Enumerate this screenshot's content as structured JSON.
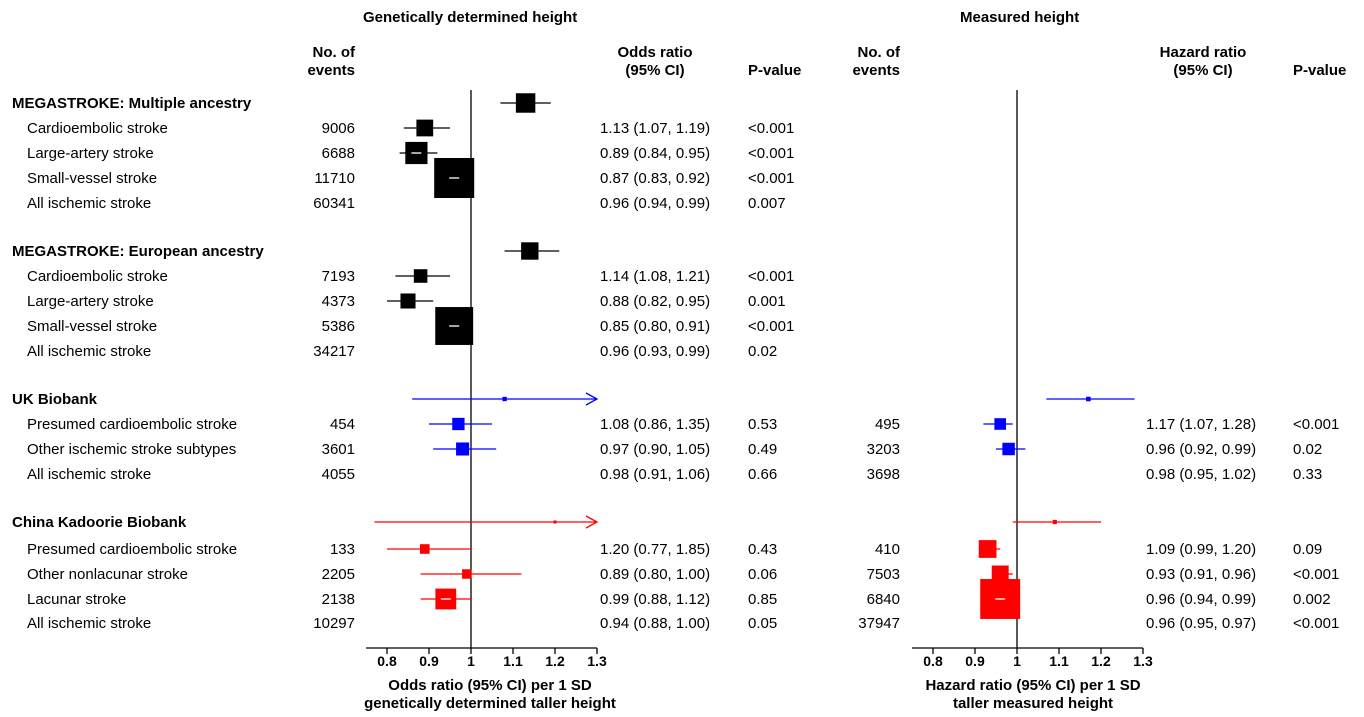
{
  "colors": {
    "black": "#000000",
    "blue": "#0000ff",
    "red": "#ff0000"
  },
  "chart_data": [
    {
      "type": "forest",
      "title": "Genetically determined height",
      "col_events": "No. of\nevents",
      "col_estimate": "Odds ratio\n(95% CI)",
      "col_p": "P-value",
      "xlabel": "Odds ratio (95% CI) per 1 SD\ngenetically determined taller height",
      "xlim": [
        0.75,
        1.3
      ],
      "ticks": [
        0.8,
        0.9,
        1,
        1.1,
        1.2,
        1.3
      ],
      "tick_labels": [
        "0.8",
        "0.9",
        "1",
        "1.1",
        "1.2",
        "1.3"
      ],
      "reference": 1,
      "rows": [
        {
          "est": 1.13,
          "lo": 1.07,
          "hi": 1.19,
          "color": "black",
          "w": 9006
        },
        {
          "est": 0.89,
          "lo": 0.84,
          "hi": 0.95,
          "color": "black",
          "w": 6688
        },
        {
          "est": 0.87,
          "lo": 0.83,
          "hi": 0.92,
          "color": "black",
          "w": 11710
        },
        {
          "est": 0.96,
          "lo": 0.94,
          "hi": 0.99,
          "color": "black",
          "w": 60341
        },
        null,
        {
          "est": 1.14,
          "lo": 1.08,
          "hi": 1.21,
          "color": "black",
          "w": 7193
        },
        {
          "est": 0.88,
          "lo": 0.82,
          "hi": 0.95,
          "color": "black",
          "w": 4373
        },
        {
          "est": 0.85,
          "lo": 0.8,
          "hi": 0.91,
          "color": "black",
          "w": 5386
        },
        {
          "est": 0.96,
          "lo": 0.93,
          "hi": 0.99,
          "color": "black",
          "w": 34217
        },
        null,
        {
          "est": 1.08,
          "lo": 0.86,
          "hi": 1.35,
          "color": "blue",
          "w": 454,
          "arrow": true
        },
        {
          "est": 0.97,
          "lo": 0.9,
          "hi": 1.05,
          "color": "blue",
          "w": 3601
        },
        {
          "est": 0.98,
          "lo": 0.91,
          "hi": 1.06,
          "color": "blue",
          "w": 4055
        },
        null,
        {
          "est": 1.2,
          "lo": 0.77,
          "hi": 1.85,
          "color": "red",
          "w": 133,
          "arrow": true
        },
        {
          "est": 0.89,
          "lo": 0.8,
          "hi": 1.0,
          "color": "red",
          "w": 2205
        },
        {
          "est": 0.99,
          "lo": 0.88,
          "hi": 1.12,
          "color": "red",
          "w": 2138
        },
        {
          "est": 0.94,
          "lo": 0.88,
          "hi": 1.0,
          "color": "red",
          "w": 10297
        }
      ]
    },
    {
      "type": "forest",
      "title": "Measured height",
      "col_events": "No. of\nevents",
      "col_estimate": "Hazard ratio\n(95% CI)",
      "col_p": "P-value",
      "xlabel": "Hazard ratio (95% CI) per 1 SD\ntaller measured height",
      "xlim": [
        0.75,
        1.3
      ],
      "ticks": [
        0.8,
        0.9,
        1,
        1.1,
        1.2,
        1.3
      ],
      "tick_labels": [
        "0.8",
        "0.9",
        "1",
        "1.1",
        "1.2",
        "1.3"
      ],
      "reference": 1,
      "rows": [
        null,
        null,
        null,
        null,
        null,
        null,
        null,
        null,
        null,
        null,
        {
          "est": 1.17,
          "lo": 1.07,
          "hi": 1.28,
          "color": "blue",
          "w": 495
        },
        {
          "est": 0.96,
          "lo": 0.92,
          "hi": 0.99,
          "color": "blue",
          "w": 3203
        },
        {
          "est": 0.98,
          "lo": 0.95,
          "hi": 1.02,
          "color": "blue",
          "w": 3698
        },
        null,
        {
          "est": 1.09,
          "lo": 0.99,
          "hi": 1.2,
          "color": "red",
          "w": 410
        },
        {
          "est": 0.93,
          "lo": 0.91,
          "hi": 0.96,
          "color": "red",
          "w": 7503
        },
        {
          "est": 0.96,
          "lo": 0.94,
          "hi": 0.99,
          "color": "red",
          "w": 6840
        },
        {
          "est": 0.96,
          "lo": 0.95,
          "hi": 0.97,
          "color": "red",
          "w": 37947
        }
      ]
    }
  ],
  "table": {
    "rows": [
      {
        "kind": "header",
        "label": "MEGASTROKE: Multiple ancestry"
      },
      {
        "kind": "item",
        "label": "Cardioembolic stroke",
        "n1": "9006",
        "or": "1.13 (1.07, 1.19)",
        "p1": "<0.001"
      },
      {
        "kind": "item",
        "label": "Large-artery stroke",
        "n1": "6688",
        "or": "0.89 (0.84, 0.95)",
        "p1": "<0.001"
      },
      {
        "kind": "item",
        "label": "Small-vessel stroke",
        "n1": "11710",
        "or": "0.87 (0.83, 0.92)",
        "p1": "<0.001"
      },
      {
        "kind": "item",
        "label": "All ischemic stroke",
        "n1": "60341",
        "or": "0.96 (0.94, 0.99)",
        "p1": "0.007"
      },
      {
        "kind": "header",
        "label": "MEGASTROKE: European ancestry"
      },
      {
        "kind": "item",
        "label": "Cardioembolic stroke",
        "n1": "7193",
        "or": "1.14 (1.08, 1.21)",
        "p1": "<0.001"
      },
      {
        "kind": "item",
        "label": "Large-artery stroke",
        "n1": "4373",
        "or": "0.88 (0.82, 0.95)",
        "p1": "0.001"
      },
      {
        "kind": "item",
        "label": "Small-vessel stroke",
        "n1": "5386",
        "or": "0.85 (0.80, 0.91)",
        "p1": "<0.001"
      },
      {
        "kind": "item",
        "label": "All ischemic stroke",
        "n1": "34217",
        "or": "0.96 (0.93, 0.99)",
        "p1": "0.02"
      },
      {
        "kind": "header",
        "label": "UK Biobank"
      },
      {
        "kind": "item",
        "label": "Presumed cardioembolic stroke",
        "n1": "454",
        "or": "1.08 (0.86, 1.35)",
        "p1": "0.53",
        "n2": "495",
        "hr": "1.17 (1.07, 1.28)",
        "p2": "<0.001"
      },
      {
        "kind": "item",
        "label": "Other ischemic stroke subtypes",
        "n1": "3601",
        "or": "0.97 (0.90, 1.05)",
        "p1": "0.49",
        "n2": "3203",
        "hr": "0.96 (0.92, 0.99)",
        "p2": "0.02"
      },
      {
        "kind": "item",
        "label": "All ischemic stroke",
        "n1": "4055",
        "or": "0.98 (0.91, 1.06)",
        "p1": "0.66",
        "n2": "3698",
        "hr": "0.98 (0.95, 1.02)",
        "p2": "0.33"
      },
      {
        "kind": "header",
        "label": "China Kadoorie Biobank"
      },
      {
        "kind": "item",
        "label": "Presumed cardioembolic stroke",
        "n1": "133",
        "or": "1.20 (0.77, 1.85)",
        "p1": "0.43",
        "n2": "410",
        "hr": "1.09 (0.99, 1.20)",
        "p2": "0.09"
      },
      {
        "kind": "item",
        "label": "Other nonlacunar stroke",
        "n1": "2205",
        "or": "0.89 (0.80, 1.00)",
        "p1": "0.06",
        "n2": "7503",
        "hr": "0.93 (0.91, 0.96)",
        "p2": "<0.001"
      },
      {
        "kind": "item",
        "label": "Lacunar stroke",
        "n1": "2138",
        "or": "0.99 (0.88, 1.12)",
        "p1": "0.85",
        "n2": "6840",
        "hr": "0.96 (0.94, 0.99)",
        "p2": "0.002"
      },
      {
        "kind": "item",
        "label": "All ischemic stroke",
        "n1": "10297",
        "or": "0.94 (0.88, 1.00)",
        "p1": "0.05",
        "n2": "37947",
        "hr": "0.96 (0.95, 0.97)",
        "p2": "<0.001"
      }
    ]
  }
}
